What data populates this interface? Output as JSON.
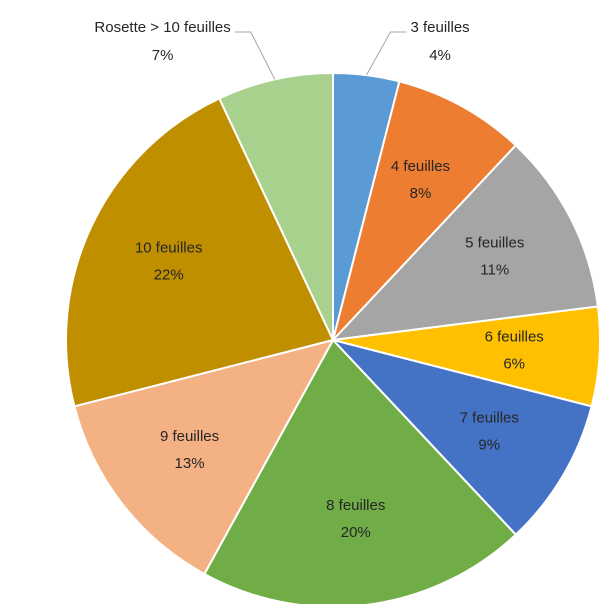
{
  "chart_data": {
    "type": "pie",
    "categories": [
      "3 feuilles",
      "4 feuilles",
      "5 feuilles",
      "6 feuilles",
      "7 feuilles",
      "8 feuilles",
      "9 feuilles",
      "10 feuilles",
      "Rosette > 10 feuilles"
    ],
    "values": [
      4,
      8,
      11,
      6,
      9,
      20,
      13,
      22,
      7
    ],
    "value_labels": [
      "4%",
      "8%",
      "11%",
      "6%",
      "9%",
      "20%",
      "13%",
      "22%",
      "7%"
    ],
    "colors": [
      "#5b9bd5",
      "#ed7d31",
      "#a5a5a5",
      "#ffc000",
      "#4472c4",
      "#70ad47",
      "#f4b183",
      "#bf8f00",
      "#a9d18e"
    ]
  }
}
